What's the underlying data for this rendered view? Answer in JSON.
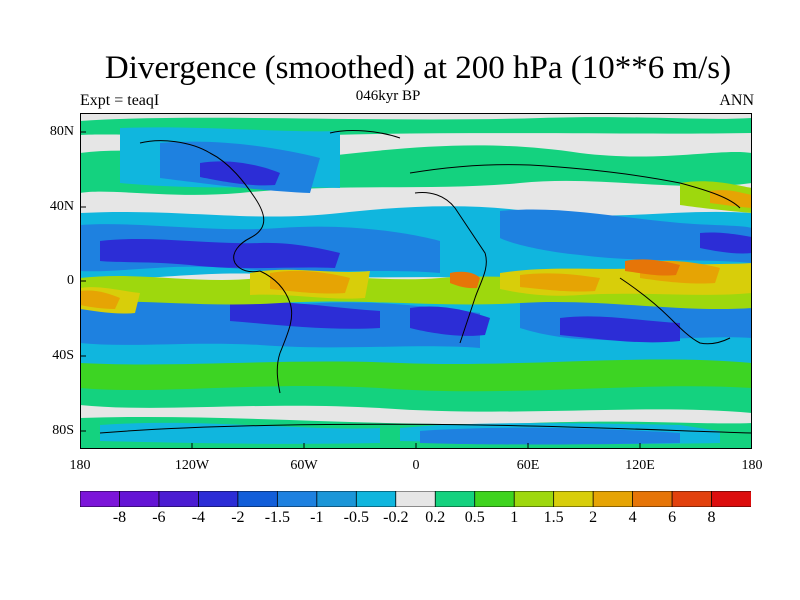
{
  "title": "Divergence (smoothed) at 200 hPa (10**6 m/s)",
  "subtitle_left": "Expt = teaqI",
  "subtitle_center": "046kyr BP",
  "subtitle_right": "ANN",
  "y_ticks": [
    "80N",
    "40N",
    "0",
    "40S",
    "80S"
  ],
  "x_ticks": [
    "180",
    "120W",
    "60W",
    "0",
    "60E",
    "120E",
    "180"
  ],
  "colorbar": {
    "colors": [
      "#7c15d9",
      "#6414d5",
      "#4b1cd2",
      "#2c2dd6",
      "#125ed9",
      "#1e81e0",
      "#1b96d8",
      "#10b6de",
      "#e6e6e6",
      "#14d27f",
      "#3fd41f",
      "#9ed80d",
      "#d8ce0a",
      "#e6a404",
      "#e67508",
      "#e2410d",
      "#dc0d0d"
    ],
    "labels": [
      "-8",
      "-6",
      "-4",
      "-2",
      "-1.5",
      "-1",
      "-0.5",
      "-0.2",
      "0.2",
      "0.5",
      "1",
      "1.5",
      "2",
      "4",
      "6",
      "8"
    ]
  }
}
